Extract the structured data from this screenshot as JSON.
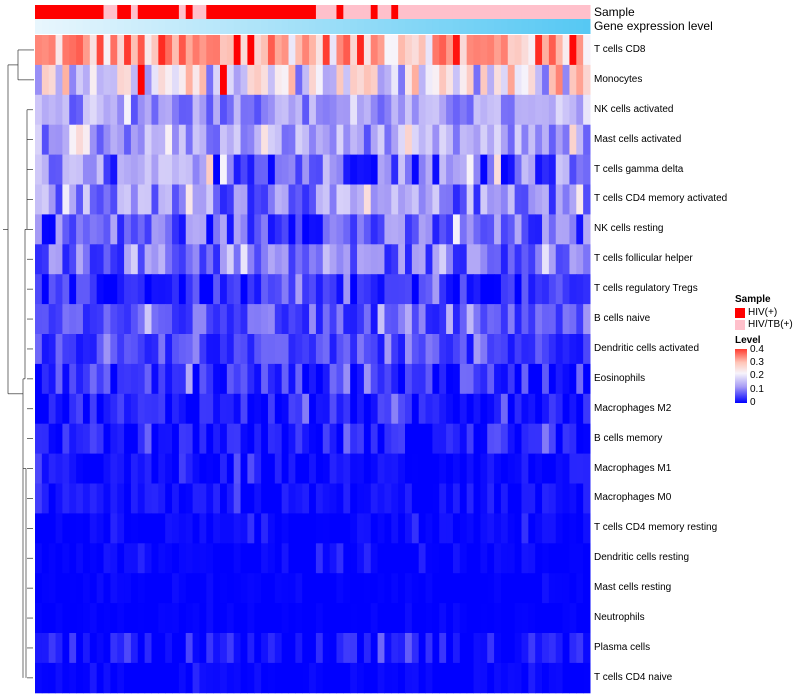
{
  "chart_data": {
    "type": "heatmap",
    "title": "",
    "annotation_labels": [
      "Sample",
      "Gene expression level"
    ],
    "sample_groups": [
      {
        "name": "HIV(+)",
        "color": "#ff0000"
      },
      {
        "name": "HIV/TB(+)",
        "color": "#ffc0cb"
      }
    ],
    "column_groups": [
      0,
      0,
      0,
      0,
      0,
      0,
      0,
      0,
      0,
      0,
      1,
      1,
      0,
      0,
      1,
      0,
      0,
      0,
      0,
      0,
      0,
      1,
      0,
      1,
      1,
      0,
      0,
      0,
      0,
      0,
      0,
      0,
      0,
      0,
      0,
      0,
      0,
      0,
      0,
      0,
      0,
      1,
      1,
      1,
      0,
      1,
      1,
      1,
      1,
      0,
      1,
      1,
      0,
      1,
      1,
      1,
      1,
      1,
      1,
      1,
      1,
      1,
      1,
      1,
      1,
      1,
      1,
      1,
      1,
      1,
      1,
      1,
      1,
      1,
      1,
      1,
      1,
      1,
      1,
      1,
      1
    ],
    "gene_expression_gradient": [
      "#e8f6fd",
      "#56c8f3"
    ],
    "rows": [
      {
        "name": "T cells CD8",
        "base": 0.3,
        "var": 0.12
      },
      {
        "name": "Monocytes",
        "base": 0.19,
        "var": 0.13
      },
      {
        "name": "NK cells activated",
        "base": 0.1,
        "var": 0.05
      },
      {
        "name": "Mast cells activated",
        "base": 0.11,
        "var": 0.06
      },
      {
        "name": "T cells gamma delta",
        "base": 0.08,
        "var": 0.08
      },
      {
        "name": "T cells CD4 memory activated",
        "base": 0.09,
        "var": 0.07
      },
      {
        "name": "NK cells resting",
        "base": 0.06,
        "var": 0.06
      },
      {
        "name": "T cells follicular helper",
        "base": 0.07,
        "var": 0.05
      },
      {
        "name": "T cells regulatory  Tregs",
        "base": 0.02,
        "var": 0.04
      },
      {
        "name": "B cells naive",
        "base": 0.05,
        "var": 0.04
      },
      {
        "name": "Dendritic cells activated",
        "base": 0.04,
        "var": 0.03
      },
      {
        "name": "Eosinophils",
        "base": 0.03,
        "var": 0.04
      },
      {
        "name": "Macrophages M2",
        "base": 0.02,
        "var": 0.03
      },
      {
        "name": "B cells memory",
        "base": 0.015,
        "var": 0.03
      },
      {
        "name": "Macrophages M1",
        "base": 0.005,
        "var": 0.02
      },
      {
        "name": "Macrophages M0",
        "base": 0.005,
        "var": 0.02
      },
      {
        "name": "T cells CD4 memory resting",
        "base": 0.002,
        "var": 0.012
      },
      {
        "name": "Dendritic cells resting",
        "base": 0.002,
        "var": 0.012
      },
      {
        "name": "Mast cells resting",
        "base": 0.0,
        "var": 0.005
      },
      {
        "name": "Neutrophils",
        "base": 0.0,
        "var": 0.005
      },
      {
        "name": "Plasma cells",
        "base": 0.01,
        "var": 0.03
      },
      {
        "name": "T cells CD4 naive",
        "base": 0.0,
        "var": 0.01
      }
    ],
    "n_columns": 81,
    "color_scale": {
      "stops": [
        [
          0,
          "#0000ff"
        ],
        [
          0.1,
          "#a79cf5"
        ],
        [
          0.2,
          "#f7f4fb"
        ],
        [
          0.3,
          "#ffb3a3"
        ],
        [
          0.4,
          "#ff3b2f"
        ],
        [
          0.45,
          "#ff0000"
        ]
      ],
      "range": [
        0,
        0.45
      ]
    },
    "legend": {
      "sample_title": "Sample",
      "level_title": "Level",
      "level_ticks": [
        "0.4",
        "0.3",
        "0.2",
        "0.1",
        "0"
      ],
      "level_tick_values": [
        0.4,
        0.3,
        0.2,
        0.1,
        0
      ],
      "placement": "right"
    }
  }
}
